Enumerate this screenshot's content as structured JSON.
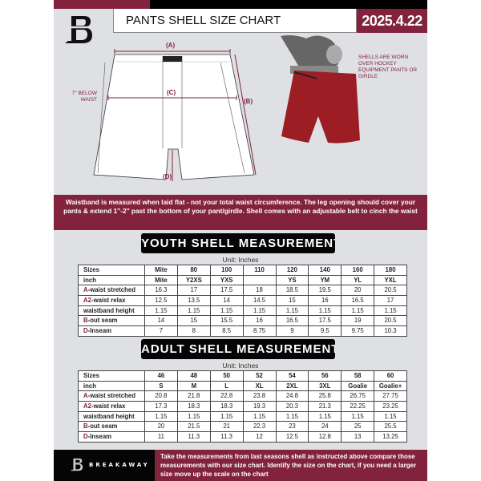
{
  "header": {
    "title": "PANTS SHELL SIZE CHART",
    "date": "2025.4.22"
  },
  "diagram": {
    "labels": {
      "a": "(A)",
      "b": "(B)",
      "c": "(C)",
      "d": "(D)"
    },
    "below_waist_note": "7'' BELOW WAIST",
    "shell_note": "SHELLS ARE WORN OVER HOCKEY EQUIPMENT PANTS OR GIRDLE"
  },
  "banner": {
    "text": "Waistband is measured when laid flat - not your total waist circumference. The leg opening should cover your pants & extend 1''-2'' past the bottom of your pant/girdle. Shell comes with an adjustable belt to cinch the waist"
  },
  "youth": {
    "title": "YOUTH SHELL MEASUREMENTS",
    "unit": "Unit: Inches",
    "rows": [
      {
        "prefix": "",
        "label": "Sizes",
        "values": [
          "Mite",
          "80",
          "100",
          "110",
          "120",
          "140",
          "160",
          "180"
        ]
      },
      {
        "prefix": "",
        "label": "inch",
        "values": [
          "Mite",
          "Y2XS",
          "YXS",
          "",
          "YS",
          "YM",
          "YL",
          "YXL"
        ]
      },
      {
        "prefix": "A",
        "label": "-waist stretched",
        "values": [
          "16.3",
          "17",
          "17.5",
          "18",
          "18.5",
          "19.5",
          "20",
          "20.5"
        ]
      },
      {
        "prefix": "A2",
        "label": "-waist relax",
        "values": [
          "12.5",
          "13.5",
          "14",
          "14.5",
          "15",
          "16",
          "16.5",
          "17"
        ]
      },
      {
        "prefix": "",
        "label": "waistband height",
        "values": [
          "1.15",
          "1.15",
          "1.15",
          "1.15",
          "1.15",
          "1.15",
          "1.15",
          "1.15"
        ]
      },
      {
        "prefix": "B",
        "label": "-out seam",
        "values": [
          "14",
          "15",
          "15.5",
          "16",
          "16.5",
          "17.5",
          "19",
          "20.5"
        ]
      },
      {
        "prefix": "D",
        "label": "-Inseam",
        "values": [
          "7",
          "8",
          "8.5",
          "8.75",
          "9",
          "9.5",
          "9.75",
          "10.3"
        ]
      }
    ]
  },
  "adult": {
    "title": "ADULT SHELL MEASUREMENTS",
    "unit": "Unit: Inches",
    "rows": [
      {
        "prefix": "",
        "label": "Sizes",
        "values": [
          "46",
          "48",
          "50",
          "52",
          "54",
          "56",
          "58",
          "60"
        ]
      },
      {
        "prefix": "",
        "label": "inch",
        "values": [
          "S",
          "M",
          "L",
          "XL",
          "2XL",
          "3XL",
          "Goalie",
          "Goalie+"
        ]
      },
      {
        "prefix": "A",
        "label": "-waist stretched",
        "values": [
          "20.8",
          "21.8",
          "22.8",
          "23.8",
          "24.8",
          "25.8",
          "26.75",
          "27.75"
        ]
      },
      {
        "prefix": "A2",
        "label": "-waist relax",
        "values": [
          "17.3",
          "18.3",
          "18.3",
          "19.3",
          "20.3",
          "21.3",
          "22.25",
          "23.25"
        ]
      },
      {
        "prefix": "",
        "label": "waistband height",
        "values": [
          "1.15",
          "1.15",
          "1.15",
          "1.15",
          "1.15",
          "1.15",
          "1.15",
          "1.15"
        ]
      },
      {
        "prefix": "B",
        "label": "-out seam",
        "values": [
          "20",
          "21.5",
          "21",
          "22.3",
          "23",
          "24",
          "25",
          "25.5"
        ]
      },
      {
        "prefix": "D",
        "label": "-Inseam",
        "values": [
          "11",
          "11.3",
          "11.3",
          "12",
          "12.5",
          "12.8",
          "13",
          "13.25"
        ]
      }
    ]
  },
  "footer": {
    "brand": "BREAKAWAY",
    "text": "Take the measurements from last seasons shell as instructed above compare those measurements  with our size chart. Identify the size on the chart, if you need a larger size move up the scale on the chart"
  },
  "colors": {
    "accent": "#82223c",
    "background": "#dfe0e4",
    "dark": "#050505"
  }
}
